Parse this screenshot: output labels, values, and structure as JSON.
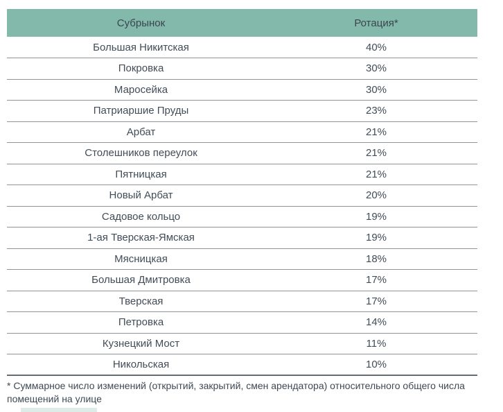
{
  "chart_data": {
    "type": "table",
    "columns": [
      "Субрынок",
      "Ротация*"
    ],
    "categories": [
      "Большая Никитская",
      "Покровка",
      "Маросейка",
      "Патриаршие Пруды",
      "Арбат",
      "Столешников переулок",
      "Пятницкая",
      "Новый Арбат",
      "Садовое кольцо",
      "1-ая Тверская-Ямская",
      "Мясницкая",
      "Большая Дмитровка",
      "Тверская",
      "Петровка",
      "Кузнецкий Мост",
      "Никольская"
    ],
    "values_percent": [
      40,
      30,
      30,
      23,
      21,
      21,
      21,
      20,
      19,
      19,
      18,
      17,
      17,
      14,
      11,
      10
    ],
    "legend_position": "none",
    "grid": "horizontal-row-separators"
  },
  "table": {
    "header": {
      "col1": "Субрынок",
      "col2": "Ротация*"
    },
    "rows": [
      {
        "submarket": "Большая Никитская",
        "rotation": "40%"
      },
      {
        "submarket": "Покровка",
        "rotation": "30%"
      },
      {
        "submarket": "Маросейка",
        "rotation": "30%"
      },
      {
        "submarket": "Патриаршие Пруды",
        "rotation": "23%"
      },
      {
        "submarket": "Арбат",
        "rotation": "21%"
      },
      {
        "submarket": "Столешников переулок",
        "rotation": "21%"
      },
      {
        "submarket": "Пятницкая",
        "rotation": "21%"
      },
      {
        "submarket": "Новый Арбат",
        "rotation": "20%"
      },
      {
        "submarket": "Садовое кольцо",
        "rotation": "19%"
      },
      {
        "submarket": "1-ая Тверская-Ямская",
        "rotation": "19%"
      },
      {
        "submarket": "Мясницкая",
        "rotation": "18%"
      },
      {
        "submarket": "Большая Дмитровка",
        "rotation": "17%"
      },
      {
        "submarket": "Тверская",
        "rotation": "17%"
      },
      {
        "submarket": "Петровка",
        "rotation": "14%"
      },
      {
        "submarket": "Кузнецкий Мост",
        "rotation": "11%"
      },
      {
        "submarket": "Никольская",
        "rotation": "10%"
      }
    ]
  },
  "footnote": {
    "line1": "* Суммарное число изменений (открытий, закрытий, смен арендатора) относительного общего числа",
    "line2": "помещений на улице"
  },
  "colors": {
    "header_bg": "#82b9ab",
    "header_text": "#3a454f",
    "row_text": "#414c57",
    "row_separator": "#8f9396",
    "footnote_rule": "#646d72",
    "footnote_text": "#3e4954"
  }
}
